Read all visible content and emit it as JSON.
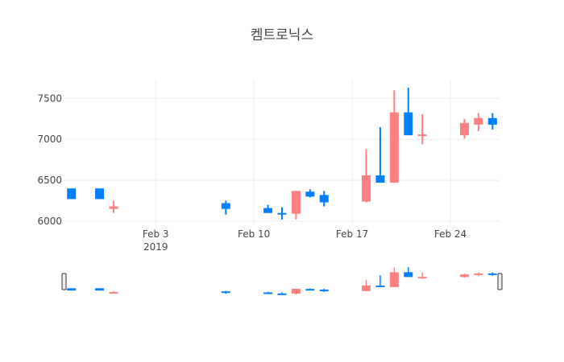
{
  "chart_data": {
    "type": "candlestick",
    "title": "켐트로닉스",
    "xlabel": "",
    "ylabel": "",
    "ylim": [
      5950,
      7720
    ],
    "x_ticks": [
      "Feb 3",
      "Feb 10",
      "Feb 17",
      "Feb 24"
    ],
    "x_tick_year": "2019",
    "y_ticks": [
      "6000",
      "6500",
      "7000",
      "7500"
    ],
    "increasing_color": "#ff8080",
    "decreasing_color": "#0080ff",
    "grid": true,
    "range_slider": true,
    "candles": [
      {
        "date": "2019-01-28",
        "open": 6400,
        "high": 6400,
        "low": 6270,
        "close": 6270
      },
      {
        "date": "2019-01-30",
        "open": 6400,
        "high": 6400,
        "low": 6270,
        "close": 6270
      },
      {
        "date": "2019-01-31",
        "open": 6150,
        "high": 6250,
        "low": 6100,
        "close": 6180
      },
      {
        "date": "2019-02-08",
        "open": 6220,
        "high": 6250,
        "low": 6080,
        "close": 6150
      },
      {
        "date": "2019-02-11",
        "open": 6160,
        "high": 6200,
        "low": 6100,
        "close": 6100
      },
      {
        "date": "2019-02-12",
        "open": 6100,
        "high": 6170,
        "low": 6020,
        "close": 6090
      },
      {
        "date": "2019-02-13",
        "open": 6090,
        "high": 6370,
        "low": 6020,
        "close": 6370
      },
      {
        "date": "2019-02-14",
        "open": 6360,
        "high": 6390,
        "low": 6290,
        "close": 6300
      },
      {
        "date": "2019-02-15",
        "open": 6320,
        "high": 6370,
        "low": 6180,
        "close": 6230
      },
      {
        "date": "2019-02-18",
        "open": 6240,
        "high": 6880,
        "low": 6230,
        "close": 6560
      },
      {
        "date": "2019-02-19",
        "open": 6560,
        "high": 7150,
        "low": 6470,
        "close": 6470
      },
      {
        "date": "2019-02-20",
        "open": 6470,
        "high": 7600,
        "low": 6470,
        "close": 7330
      },
      {
        "date": "2019-02-21",
        "open": 7330,
        "high": 7630,
        "low": 7050,
        "close": 7050
      },
      {
        "date": "2019-02-22",
        "open": 7060,
        "high": 7310,
        "low": 6940,
        "close": 7060
      },
      {
        "date": "2019-02-25",
        "open": 7050,
        "high": 7250,
        "low": 7010,
        "close": 7200
      },
      {
        "date": "2019-02-26",
        "open": 7180,
        "high": 7320,
        "low": 7100,
        "close": 7260
      },
      {
        "date": "2019-02-27",
        "open": 7260,
        "high": 7320,
        "low": 7120,
        "close": 7180
      }
    ]
  }
}
